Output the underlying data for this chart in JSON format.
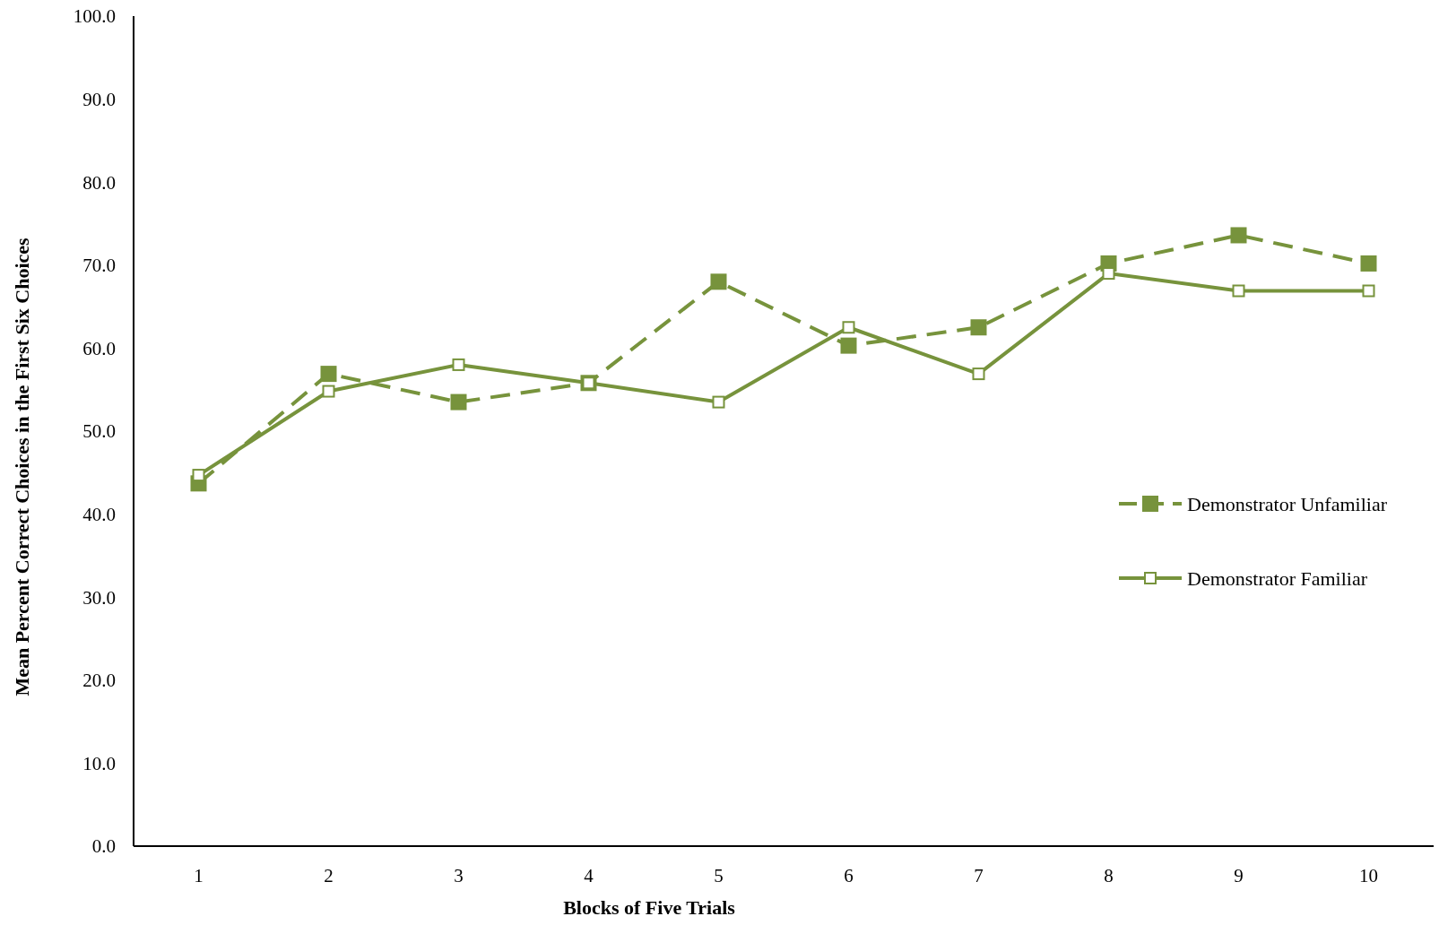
{
  "chart_data": {
    "type": "line",
    "xlabel": "Blocks of Five Trials",
    "ylabel": "Mean Percent Correct Choices in the First Six Choices",
    "categories": [
      "1",
      "2",
      "3",
      "4",
      "5",
      "6",
      "7",
      "8",
      "9",
      "10"
    ],
    "ylim": [
      0,
      100
    ],
    "yticks": [
      {
        "value": 0,
        "label": "0.0"
      },
      {
        "value": 10,
        "label": "10.0"
      },
      {
        "value": 20,
        "label": "20.0"
      },
      {
        "value": 30,
        "label": "30.0"
      },
      {
        "value": 40,
        "label": "40.0"
      },
      {
        "value": 50,
        "label": "50.0"
      },
      {
        "value": 60,
        "label": "60.0"
      },
      {
        "value": 70,
        "label": "70.0"
      },
      {
        "value": 80,
        "label": "80.0"
      },
      {
        "value": 90,
        "label": "90.0"
      },
      {
        "value": 100,
        "label": "100.0"
      }
    ],
    "grid": false,
    "legend": "right",
    "marker": "square",
    "series": [
      {
        "name": "Demonstrator Unfamiliar",
        "color": "#77933c",
        "line_style": "dashed",
        "values": [
          43.7,
          56.9,
          53.5,
          55.8,
          68.0,
          60.3,
          62.5,
          70.2,
          73.6,
          70.2
        ]
      },
      {
        "name": "Demonstrator Familiar",
        "color": "#77933c",
        "line_style": "solid",
        "values": [
          44.7,
          54.8,
          58.0,
          55.8,
          53.5,
          62.5,
          56.9,
          69.0,
          66.9,
          66.9
        ]
      }
    ]
  }
}
